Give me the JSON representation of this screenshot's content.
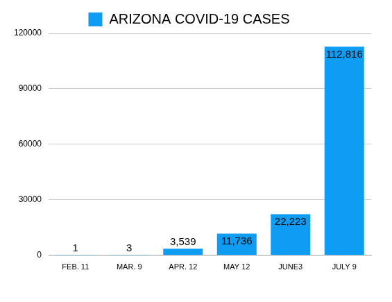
{
  "chart_data": {
    "type": "bar",
    "categories": [
      "FEB. 11",
      "MAR. 9",
      "APR. 12",
      "MAY 12",
      "JUNE3",
      "JULY 9"
    ],
    "series": [
      {
        "name": "ARIZONA COVID-19 CASES",
        "color": "#0f9cf3",
        "values": [
          1,
          3,
          3539,
          11736,
          22223,
          112816
        ],
        "value_labels": [
          "1",
          "3",
          "3,539",
          "11,736",
          "22,223",
          "112,816"
        ]
      }
    ],
    "ylim": [
      0,
      120000
    ],
    "yticks": [
      0,
      30000,
      60000,
      90000,
      120000
    ],
    "grid": true,
    "legend": "top",
    "data_labels": true
  }
}
